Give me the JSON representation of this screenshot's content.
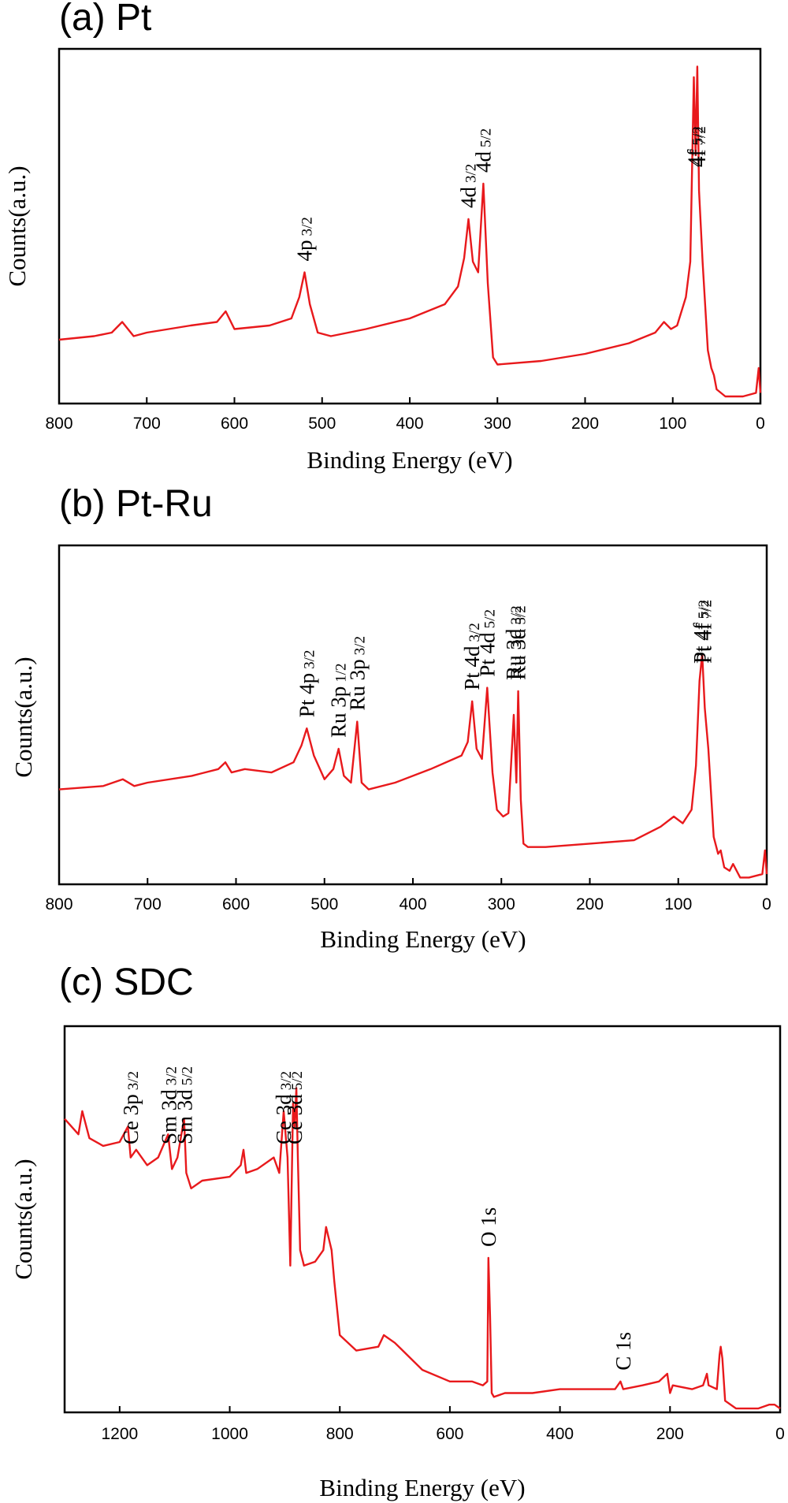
{
  "chart_data": [
    {
      "type": "line",
      "panel_title": "(a) Pt",
      "xlabel": "Binding Energy (eV)",
      "ylabel": "Counts(a.u.)",
      "xlim": [
        800,
        0
      ],
      "ylim": [
        0,
        100
      ],
      "xticks": [
        "800",
        "700",
        "600",
        "500",
        "400",
        "300",
        "200",
        "100",
        "0"
      ],
      "color": "#e8191c",
      "series": [
        {
          "x": [
            800,
            760,
            740,
            728,
            715,
            700,
            650,
            620,
            610,
            600,
            560,
            535,
            526,
            520,
            514,
            505,
            490,
            450,
            400,
            360,
            345,
            338,
            333,
            328,
            322,
            316,
            311,
            305,
            300,
            250,
            200,
            150,
            120,
            110,
            102,
            95,
            85,
            80,
            76,
            74,
            72,
            70,
            66,
            60,
            56,
            53,
            50,
            40,
            20,
            5,
            2,
            0
          ],
          "y": [
            18,
            19,
            20,
            23,
            19,
            20,
            22,
            23,
            26,
            21,
            22,
            24,
            30,
            37,
            28,
            20,
            19,
            21,
            24,
            28,
            33,
            41,
            52,
            40,
            37,
            62,
            34,
            13,
            11,
            12,
            14,
            17,
            20,
            23,
            21,
            22,
            30,
            40,
            92,
            70,
            95,
            60,
            40,
            15,
            10,
            8,
            4,
            2,
            2,
            3,
            10,
            3
          ]
        }
      ],
      "annotations": [
        {
          "label": "4p",
          "sub": "3/2",
          "x": 520
        },
        {
          "label": "4d",
          "sub": "3/2",
          "x": 333
        },
        {
          "label": "4d",
          "sub": "5/2",
          "x": 316
        },
        {
          "label": "4f",
          "sub": "5/2",
          "x": 74
        },
        {
          "label": "4f",
          "sub": "7/2",
          "x": 71
        }
      ]
    },
    {
      "type": "line",
      "panel_title": "(b) Pt-Ru",
      "xlabel": "Binding Energy (eV)",
      "ylabel": "Counts(a.u.)",
      "xlim": [
        800,
        0
      ],
      "ylim": [
        0,
        100
      ],
      "xticks": [
        "800",
        "700",
        "600",
        "500",
        "400",
        "300",
        "200",
        "100",
        "0"
      ],
      "color": "#e8191c",
      "series": [
        {
          "x": [
            800,
            750,
            728,
            715,
            700,
            650,
            620,
            612,
            605,
            590,
            560,
            535,
            526,
            520,
            512,
            500,
            490,
            484,
            478,
            470,
            463,
            458,
            450,
            420,
            380,
            345,
            338,
            333,
            328,
            322,
            316,
            310,
            305,
            298,
            292,
            286,
            283,
            281,
            278,
            275,
            270,
            250,
            200,
            150,
            120,
            105,
            95,
            85,
            80,
            76,
            73,
            70,
            66,
            60,
            55,
            52,
            48,
            42,
            38,
            30,
            20,
            5,
            2,
            0
          ],
          "y": [
            28,
            29,
            31,
            29,
            30,
            32,
            34,
            36,
            33,
            34,
            33,
            36,
            41,
            46,
            38,
            31,
            34,
            40,
            32,
            30,
            48,
            30,
            28,
            30,
            34,
            38,
            42,
            54,
            40,
            37,
            58,
            33,
            22,
            20,
            21,
            50,
            30,
            57,
            25,
            12,
            11,
            11,
            12,
            13,
            17,
            20,
            18,
            22,
            35,
            60,
            68,
            52,
            40,
            14,
            9,
            10,
            5,
            4,
            6,
            2,
            2,
            3,
            10,
            3
          ]
        }
      ],
      "annotations": [
        {
          "label": "Pt 4p",
          "sub": "3/2",
          "x": 520
        },
        {
          "label": "Ru 3p",
          "sub": "1/2",
          "x": 484
        },
        {
          "label": "Ru 3p",
          "sub": "3/2",
          "x": 463
        },
        {
          "label": "Pt 4d",
          "sub": "3/2",
          "x": 333
        },
        {
          "label": "Pt 4d",
          "sub": "5/2",
          "x": 316
        },
        {
          "label": "Ru 3d",
          "sub": "3/2",
          "x": 286
        },
        {
          "label": "Ru 3d",
          "sub": "5/2",
          "x": 281
        },
        {
          "label": "Pt 4f",
          "sub": "5/2",
          "x": 74
        },
        {
          "label": "Pt 4f",
          "sub": "7/2",
          "x": 71
        }
      ]
    },
    {
      "type": "line",
      "panel_title": "(c) SDC",
      "xlabel": "Binding Energy (eV)",
      "ylabel": "Counts(a.u.)",
      "xlim": [
        1300,
        0
      ],
      "ylim": [
        0,
        100
      ],
      "xticks": [
        "1200",
        "1000",
        "800",
        "600",
        "400",
        "200",
        "0"
      ],
      "color": "#e8191c",
      "series": [
        {
          "x": [
            1300,
            1275,
            1268,
            1255,
            1230,
            1200,
            1185,
            1180,
            1170,
            1150,
            1130,
            1112,
            1105,
            1095,
            1083,
            1079,
            1070,
            1050,
            1000,
            980,
            975,
            970,
            950,
            920,
            910,
            902,
            895,
            890,
            885,
            882,
            879,
            876,
            872,
            865,
            845,
            830,
            825,
            815,
            810,
            800,
            770,
            730,
            720,
            700,
            650,
            600,
            560,
            540,
            532,
            530,
            527,
            524,
            520,
            500,
            450,
            400,
            350,
            300,
            290,
            285,
            250,
            220,
            205,
            200,
            195,
            160,
            140,
            133,
            130,
            115,
            110,
            108,
            105,
            100,
            80,
            60,
            40,
            20,
            10,
            0
          ],
          "y": [
            76,
            72,
            78,
            71,
            69,
            70,
            74,
            66,
            68,
            64,
            66,
            72,
            63,
            66,
            76,
            62,
            58,
            60,
            61,
            64,
            68,
            62,
            63,
            66,
            62,
            78,
            66,
            38,
            80,
            74,
            84,
            65,
            42,
            38,
            39,
            42,
            48,
            42,
            34,
            20,
            16,
            17,
            20,
            18,
            11,
            8,
            8,
            7,
            8,
            40,
            25,
            5,
            4,
            5,
            5,
            6,
            6,
            6,
            8,
            6,
            7,
            8,
            10,
            5,
            7,
            6,
            7,
            10,
            7,
            6,
            15,
            17,
            14,
            3,
            1,
            1,
            1,
            2,
            2,
            1
          ]
        }
      ],
      "annotations": [
        {
          "label": "Ce 3p",
          "sub": "3/2",
          "x": 1180
        },
        {
          "label": "Sm 3d",
          "sub": "3/2",
          "x": 1110
        },
        {
          "label": "Sm 3d",
          "sub": "5/2",
          "x": 1082
        },
        {
          "label": "Ce 3d",
          "sub": "3/2",
          "x": 902
        },
        {
          "label": "Ce 3d",
          "sub": "5/2",
          "x": 882
        },
        {
          "label": "O 1s",
          "sub": "",
          "x": 530
        },
        {
          "label": "C 1s",
          "sub": "",
          "x": 285
        }
      ]
    }
  ]
}
